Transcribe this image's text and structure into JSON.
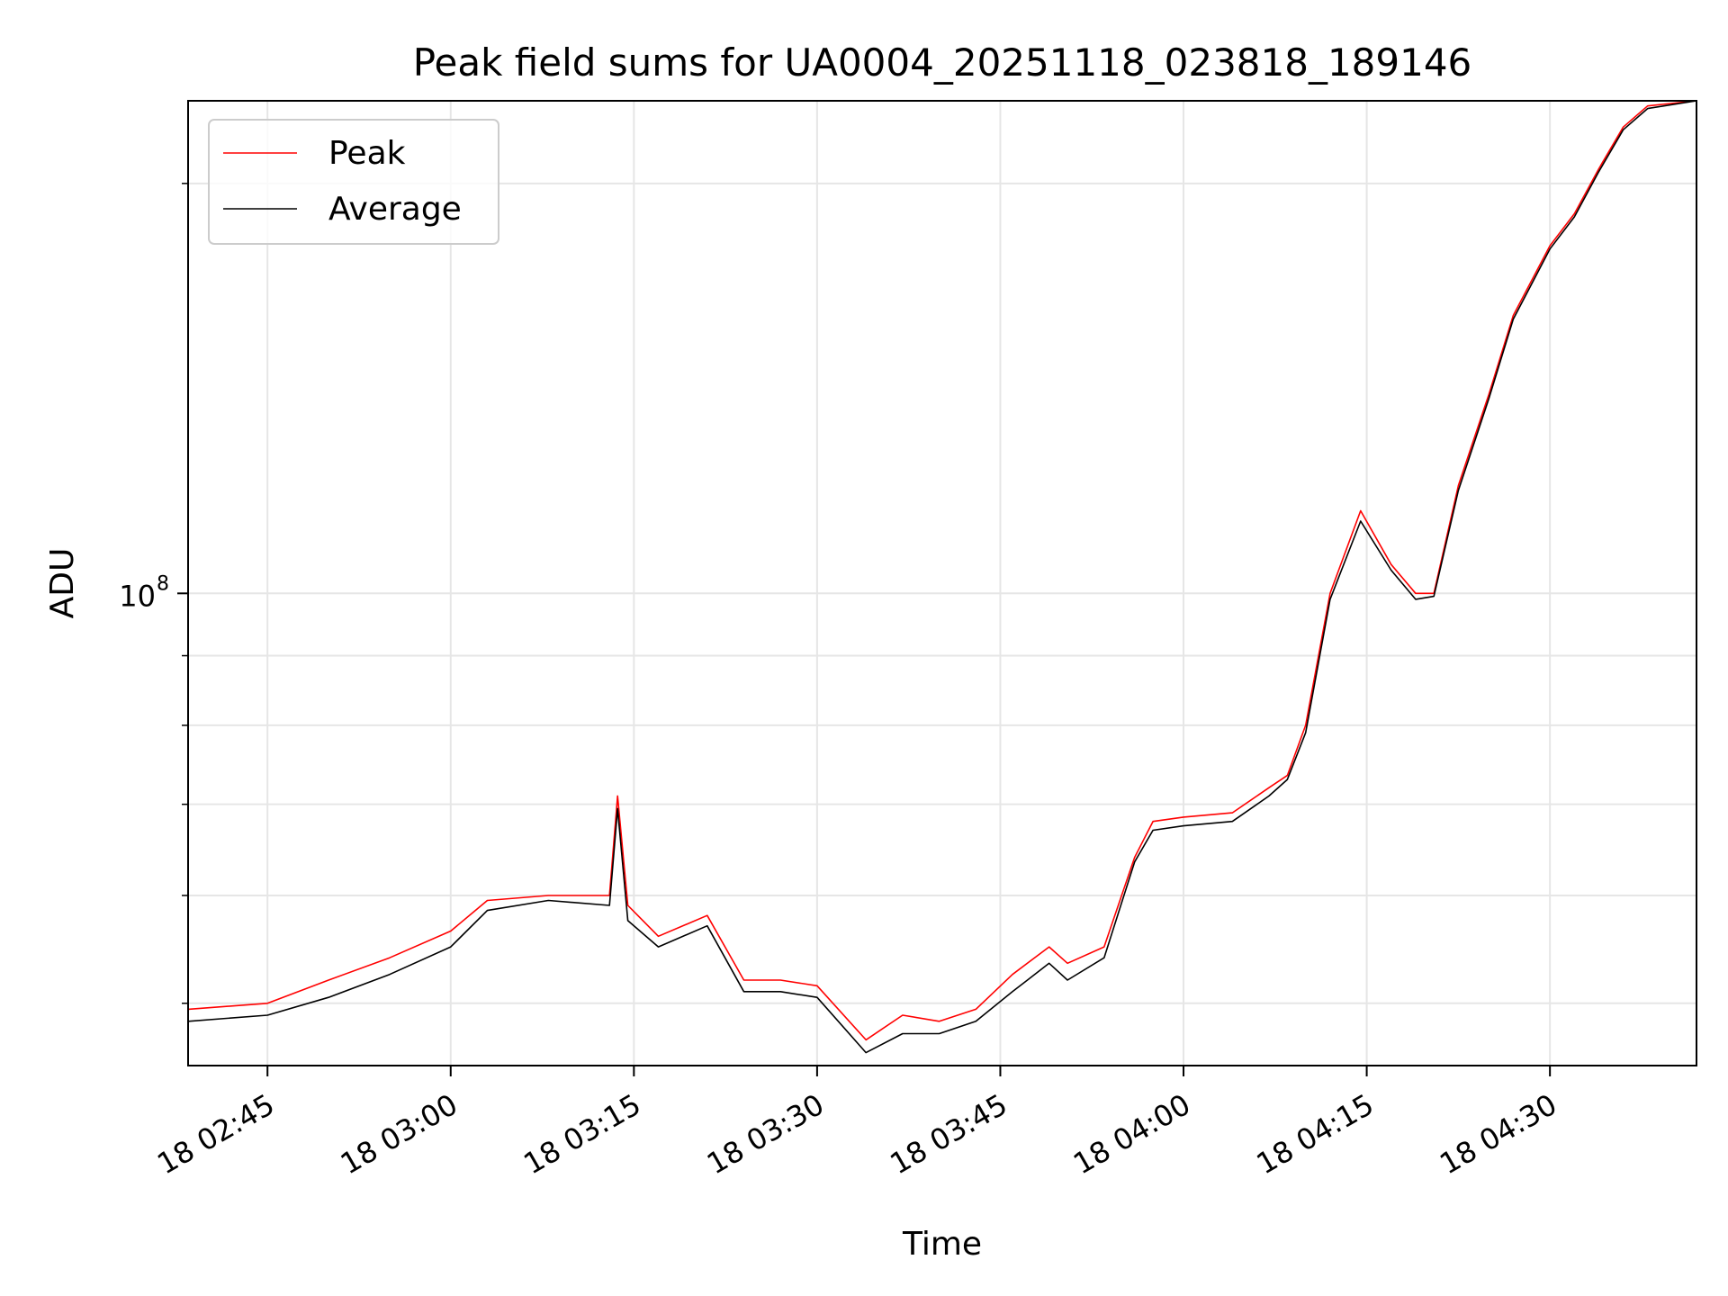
{
  "chart_data": {
    "type": "line",
    "title": "Peak field sums for UA0004_20251118_023818_189146",
    "xlabel": "Time",
    "ylabel": "ADU",
    "x_axis": {
      "kind": "datetime",
      "start": "2025-11-18T02:38:30",
      "end": "2025-11-18T04:42:00",
      "ticks": [
        "2025-11-18T02:45:00",
        "2025-11-18T03:00:00",
        "2025-11-18T03:15:00",
        "2025-11-18T03:30:00",
        "2025-11-18T03:45:00",
        "2025-11-18T04:00:00",
        "2025-11-18T04:15:00",
        "2025-11-18T04:30:00"
      ],
      "tick_labels": [
        "18 02:45",
        "18 03:00",
        "18 03:15",
        "18 03:30",
        "18 03:45",
        "18 04:00",
        "18 04:15",
        "18 04:30"
      ]
    },
    "y_axis": {
      "scale": "log",
      "ylim": [
        45000000,
        230000000
      ],
      "major_ticks": [
        100000000
      ],
      "major_tick_labels": [
        "10",
        "8"
      ],
      "minor_ticks": [
        50000000,
        60000000,
        70000000,
        80000000,
        90000000,
        200000000
      ]
    },
    "grid": true,
    "legend": {
      "position": "top-left",
      "entries": [
        "Peak",
        "Average"
      ]
    },
    "series": [
      {
        "name": "Peak",
        "color": "#ff0000",
        "x": [
          "2025-11-18T02:38:30",
          "2025-11-18T02:45:00",
          "2025-11-18T02:50:00",
          "2025-11-18T02:55:00",
          "2025-11-18T03:00:00",
          "2025-11-18T03:03:00",
          "2025-11-18T03:08:00",
          "2025-11-18T03:13:00",
          "2025-11-18T03:13:40",
          "2025-11-18T03:14:30",
          "2025-11-18T03:17:00",
          "2025-11-18T03:21:00",
          "2025-11-18T03:24:00",
          "2025-11-18T03:27:00",
          "2025-11-18T03:30:00",
          "2025-11-18T03:34:00",
          "2025-11-18T03:37:00",
          "2025-11-18T03:40:00",
          "2025-11-18T03:43:00",
          "2025-11-18T03:46:00",
          "2025-11-18T03:49:00",
          "2025-11-18T03:50:30",
          "2025-11-18T03:53:30",
          "2025-11-18T03:56:00",
          "2025-11-18T03:57:30",
          "2025-11-18T04:00:00",
          "2025-11-18T04:04:00",
          "2025-11-18T04:07:00",
          "2025-11-18T04:08:30",
          "2025-11-18T04:10:00",
          "2025-11-18T04:12:00",
          "2025-11-18T04:14:30",
          "2025-11-18T04:17:00",
          "2025-11-18T04:19:00",
          "2025-11-18T04:20:30",
          "2025-11-18T04:22:30",
          "2025-11-18T04:25:00",
          "2025-11-18T04:27:00",
          "2025-11-18T04:30:00",
          "2025-11-18T04:32:00",
          "2025-11-18T04:34:00",
          "2025-11-18T04:36:00",
          "2025-11-18T04:38:00",
          "2025-11-18T04:42:00"
        ],
        "values": [
          49500000,
          50000000,
          52000000,
          54000000,
          56500000,
          59500000,
          60000000,
          60000000,
          71000000,
          59000000,
          56000000,
          58000000,
          52000000,
          52000000,
          51500000,
          47000000,
          49000000,
          48500000,
          49500000,
          52500000,
          55000000,
          53500000,
          55000000,
          64000000,
          68000000,
          68500000,
          69000000,
          72000000,
          73500000,
          80000000,
          100000000,
          115000000,
          105000000,
          100000000,
          100000000,
          120000000,
          140000000,
          160000000,
          180000000,
          190000000,
          205000000,
          220000000,
          228000000,
          230000000
        ]
      },
      {
        "name": "Average",
        "color": "#000000",
        "x": [
          "2025-11-18T02:38:30",
          "2025-11-18T02:45:00",
          "2025-11-18T02:50:00",
          "2025-11-18T02:55:00",
          "2025-11-18T03:00:00",
          "2025-11-18T03:03:00",
          "2025-11-18T03:08:00",
          "2025-11-18T03:13:00",
          "2025-11-18T03:13:40",
          "2025-11-18T03:14:30",
          "2025-11-18T03:17:00",
          "2025-11-18T03:21:00",
          "2025-11-18T03:24:00",
          "2025-11-18T03:27:00",
          "2025-11-18T03:30:00",
          "2025-11-18T03:34:00",
          "2025-11-18T03:37:00",
          "2025-11-18T03:40:00",
          "2025-11-18T03:43:00",
          "2025-11-18T03:46:00",
          "2025-11-18T03:49:00",
          "2025-11-18T03:50:30",
          "2025-11-18T03:53:30",
          "2025-11-18T03:56:00",
          "2025-11-18T03:57:30",
          "2025-11-18T04:00:00",
          "2025-11-18T04:04:00",
          "2025-11-18T04:07:00",
          "2025-11-18T04:08:30",
          "2025-11-18T04:10:00",
          "2025-11-18T04:12:00",
          "2025-11-18T04:14:30",
          "2025-11-18T04:17:00",
          "2025-11-18T04:19:00",
          "2025-11-18T04:20:30",
          "2025-11-18T04:22:30",
          "2025-11-18T04:25:00",
          "2025-11-18T04:27:00",
          "2025-11-18T04:30:00",
          "2025-11-18T04:32:00",
          "2025-11-18T04:34:00",
          "2025-11-18T04:36:00",
          "2025-11-18T04:38:00",
          "2025-11-18T04:42:00"
        ],
        "values": [
          48500000,
          49000000,
          50500000,
          52500000,
          55000000,
          58500000,
          59500000,
          59000000,
          69500000,
          57500000,
          55000000,
          57000000,
          51000000,
          51000000,
          50500000,
          46000000,
          47500000,
          47500000,
          48500000,
          51000000,
          53500000,
          52000000,
          54000000,
          63500000,
          67000000,
          67500000,
          68000000,
          71000000,
          73000000,
          79000000,
          99000000,
          113000000,
          104000000,
          99000000,
          99500000,
          119000000,
          139000000,
          159000000,
          179000000,
          189000000,
          204000000,
          219000000,
          227000000,
          230000000
        ]
      }
    ]
  }
}
